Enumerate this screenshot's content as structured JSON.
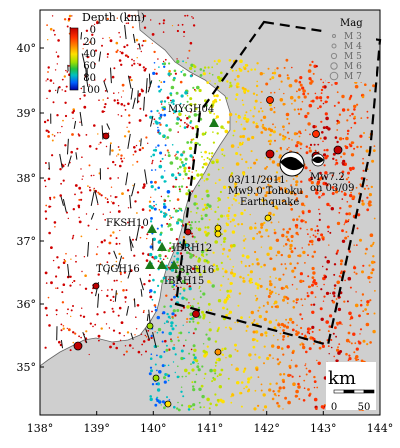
{
  "map": {
    "lon_ticks": [
      "138°",
      "139°",
      "140°",
      "141°",
      "142°",
      "143°",
      "144°"
    ],
    "lat_ticks": [
      "35°",
      "36°",
      "37°",
      "38°",
      "39°",
      "40°"
    ],
    "depth_legend": {
      "title": "Depth (km)",
      "labels": [
        "0",
        "20",
        "40",
        "60",
        "80",
        "100"
      ],
      "colors": [
        "#c00000",
        "#ff3000",
        "#ff9000",
        "#ffe000",
        "#a0e000",
        "#20c040",
        "#00c0c0",
        "#0060ff",
        "#0000a0"
      ]
    },
    "mag_legend": {
      "title": "Mag",
      "labels": [
        "M 3",
        "M 4",
        "M 5",
        "M 6",
        "M 7"
      ]
    },
    "stations": [
      {
        "name": "MYGH04"
      },
      {
        "name": "FKSH10"
      },
      {
        "name": "IBRH12"
      },
      {
        "name": "TCGH16"
      },
      {
        "name": "IBRH16"
      },
      {
        "name": "IBRH15"
      }
    ],
    "annotations": {
      "main_date": "03/11/2011",
      "main_mag": "Mw9.0 Tohoku",
      "main_label": "Earthquake",
      "fore_mag": "Mw7.2",
      "fore_date": "on 03/09"
    },
    "scale_bar": {
      "unit": "km",
      "labels": [
        "0",
        "50"
      ]
    },
    "colors": {
      "land": "#ffffff",
      "sea": "#cfcfcf",
      "station": "#1a7a1a",
      "box": "#000000"
    }
  }
}
